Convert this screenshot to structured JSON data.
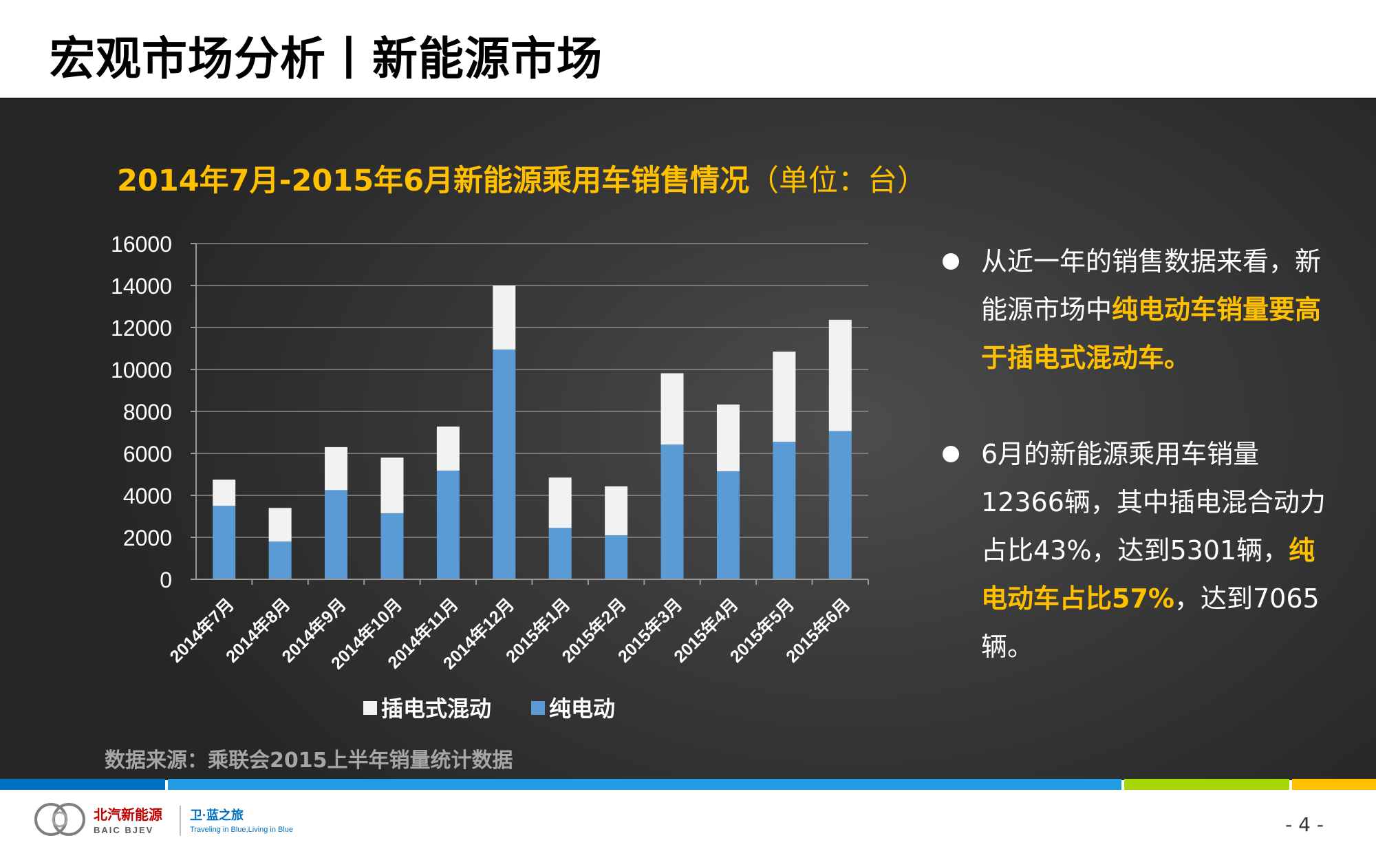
{
  "slide": {
    "title": "宏观市场分析丨新能源市场",
    "page_number": "- 4 -"
  },
  "chart_title": {
    "main": "2014年7月-2015年6月新能源乘用车销售情况",
    "unit": "（单位：台）"
  },
  "chart_data": {
    "type": "bar",
    "stacked": true,
    "categories": [
      "2014年7月",
      "2014年8月",
      "2014年9月",
      "2014年10月",
      "2014年11月",
      "2014年12月",
      "2015年1月",
      "2015年2月",
      "2015年3月",
      "2015年4月",
      "2015年5月",
      "2015年6月"
    ],
    "series": [
      {
        "name": "纯电动",
        "values": [
          3500,
          1800,
          4250,
          3150,
          5180,
          10950,
          2450,
          2100,
          6420,
          5150,
          6550,
          7065
        ],
        "color": "#5b9bd5"
      },
      {
        "name": "插电式混动",
        "values": [
          1250,
          1600,
          2050,
          2650,
          2100,
          3050,
          2400,
          2330,
          3400,
          3180,
          4300,
          5301
        ],
        "color": "#f2f2f2"
      }
    ],
    "legend_order": [
      "插电式混动",
      "纯电动"
    ],
    "ylim": [
      0,
      16000
    ],
    "yticks": [
      "16000",
      "14000",
      "12000",
      "10000",
      "8000",
      "6000",
      "4000",
      "2000",
      "0"
    ],
    "grid": true,
    "legend_position": "bottom"
  },
  "bullets": [
    {
      "segments": [
        {
          "text": "从近一年的销售数据来看，新能源市场中",
          "highlight": false
        },
        {
          "text": "纯电动车销量要高于插电式混动车。",
          "highlight": true
        }
      ]
    },
    {
      "segments": [
        {
          "text": "6月的新能源乘用车销量12366辆，其中插电混合动力占比43%，达到5301辆，",
          "highlight": false
        },
        {
          "text": "纯电动车占比57%",
          "highlight": true
        },
        {
          "text": "，达到7065辆。",
          "highlight": false
        }
      ]
    }
  ],
  "source": "数据来源：乘联会2015上半年销量统计数据",
  "footer": {
    "brand_cn": "北汽新能源",
    "brand_en": "BAIC BJEV",
    "slogan_cn": "卫·蓝之旅",
    "slogan_en": "Traveling in Blue,Living in Blue"
  },
  "colors": {
    "accent": "#ffc000",
    "bar_ev": "#5b9bd5",
    "bar_phev": "#f2f2f2",
    "stripes": [
      "#0070c0",
      "#1f9de0",
      "#a6d608",
      "#ffc000"
    ]
  }
}
